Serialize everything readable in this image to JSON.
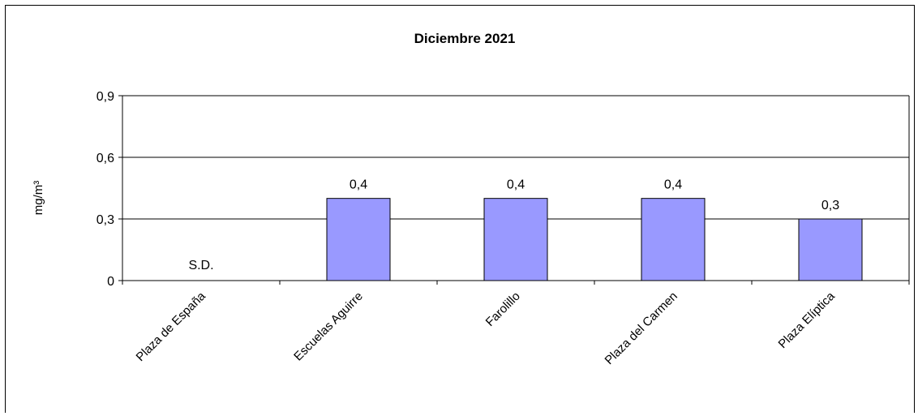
{
  "chart_data": {
    "type": "bar",
    "title": "Diciembre 2021",
    "ylabel": "mg/m³",
    "xlabel": "",
    "categories": [
      "Plaza de España",
      "Escuelas Aguirre",
      "Farolillo",
      "Plaza del Carmen",
      "Plaza Elíptica"
    ],
    "values": [
      null,
      0.4,
      0.4,
      0.4,
      0.3
    ],
    "data_labels": [
      "S.D.",
      "0,4",
      "0,4",
      "0,4",
      "0,3"
    ],
    "ylim": [
      0,
      0.9
    ],
    "yticks": [
      0,
      0.3,
      0.6,
      0.9
    ],
    "ytick_labels": [
      "0",
      "0,3",
      "0,6",
      "0,9"
    ],
    "grid": true,
    "bar_color": "#9999ff",
    "legend": "none"
  }
}
